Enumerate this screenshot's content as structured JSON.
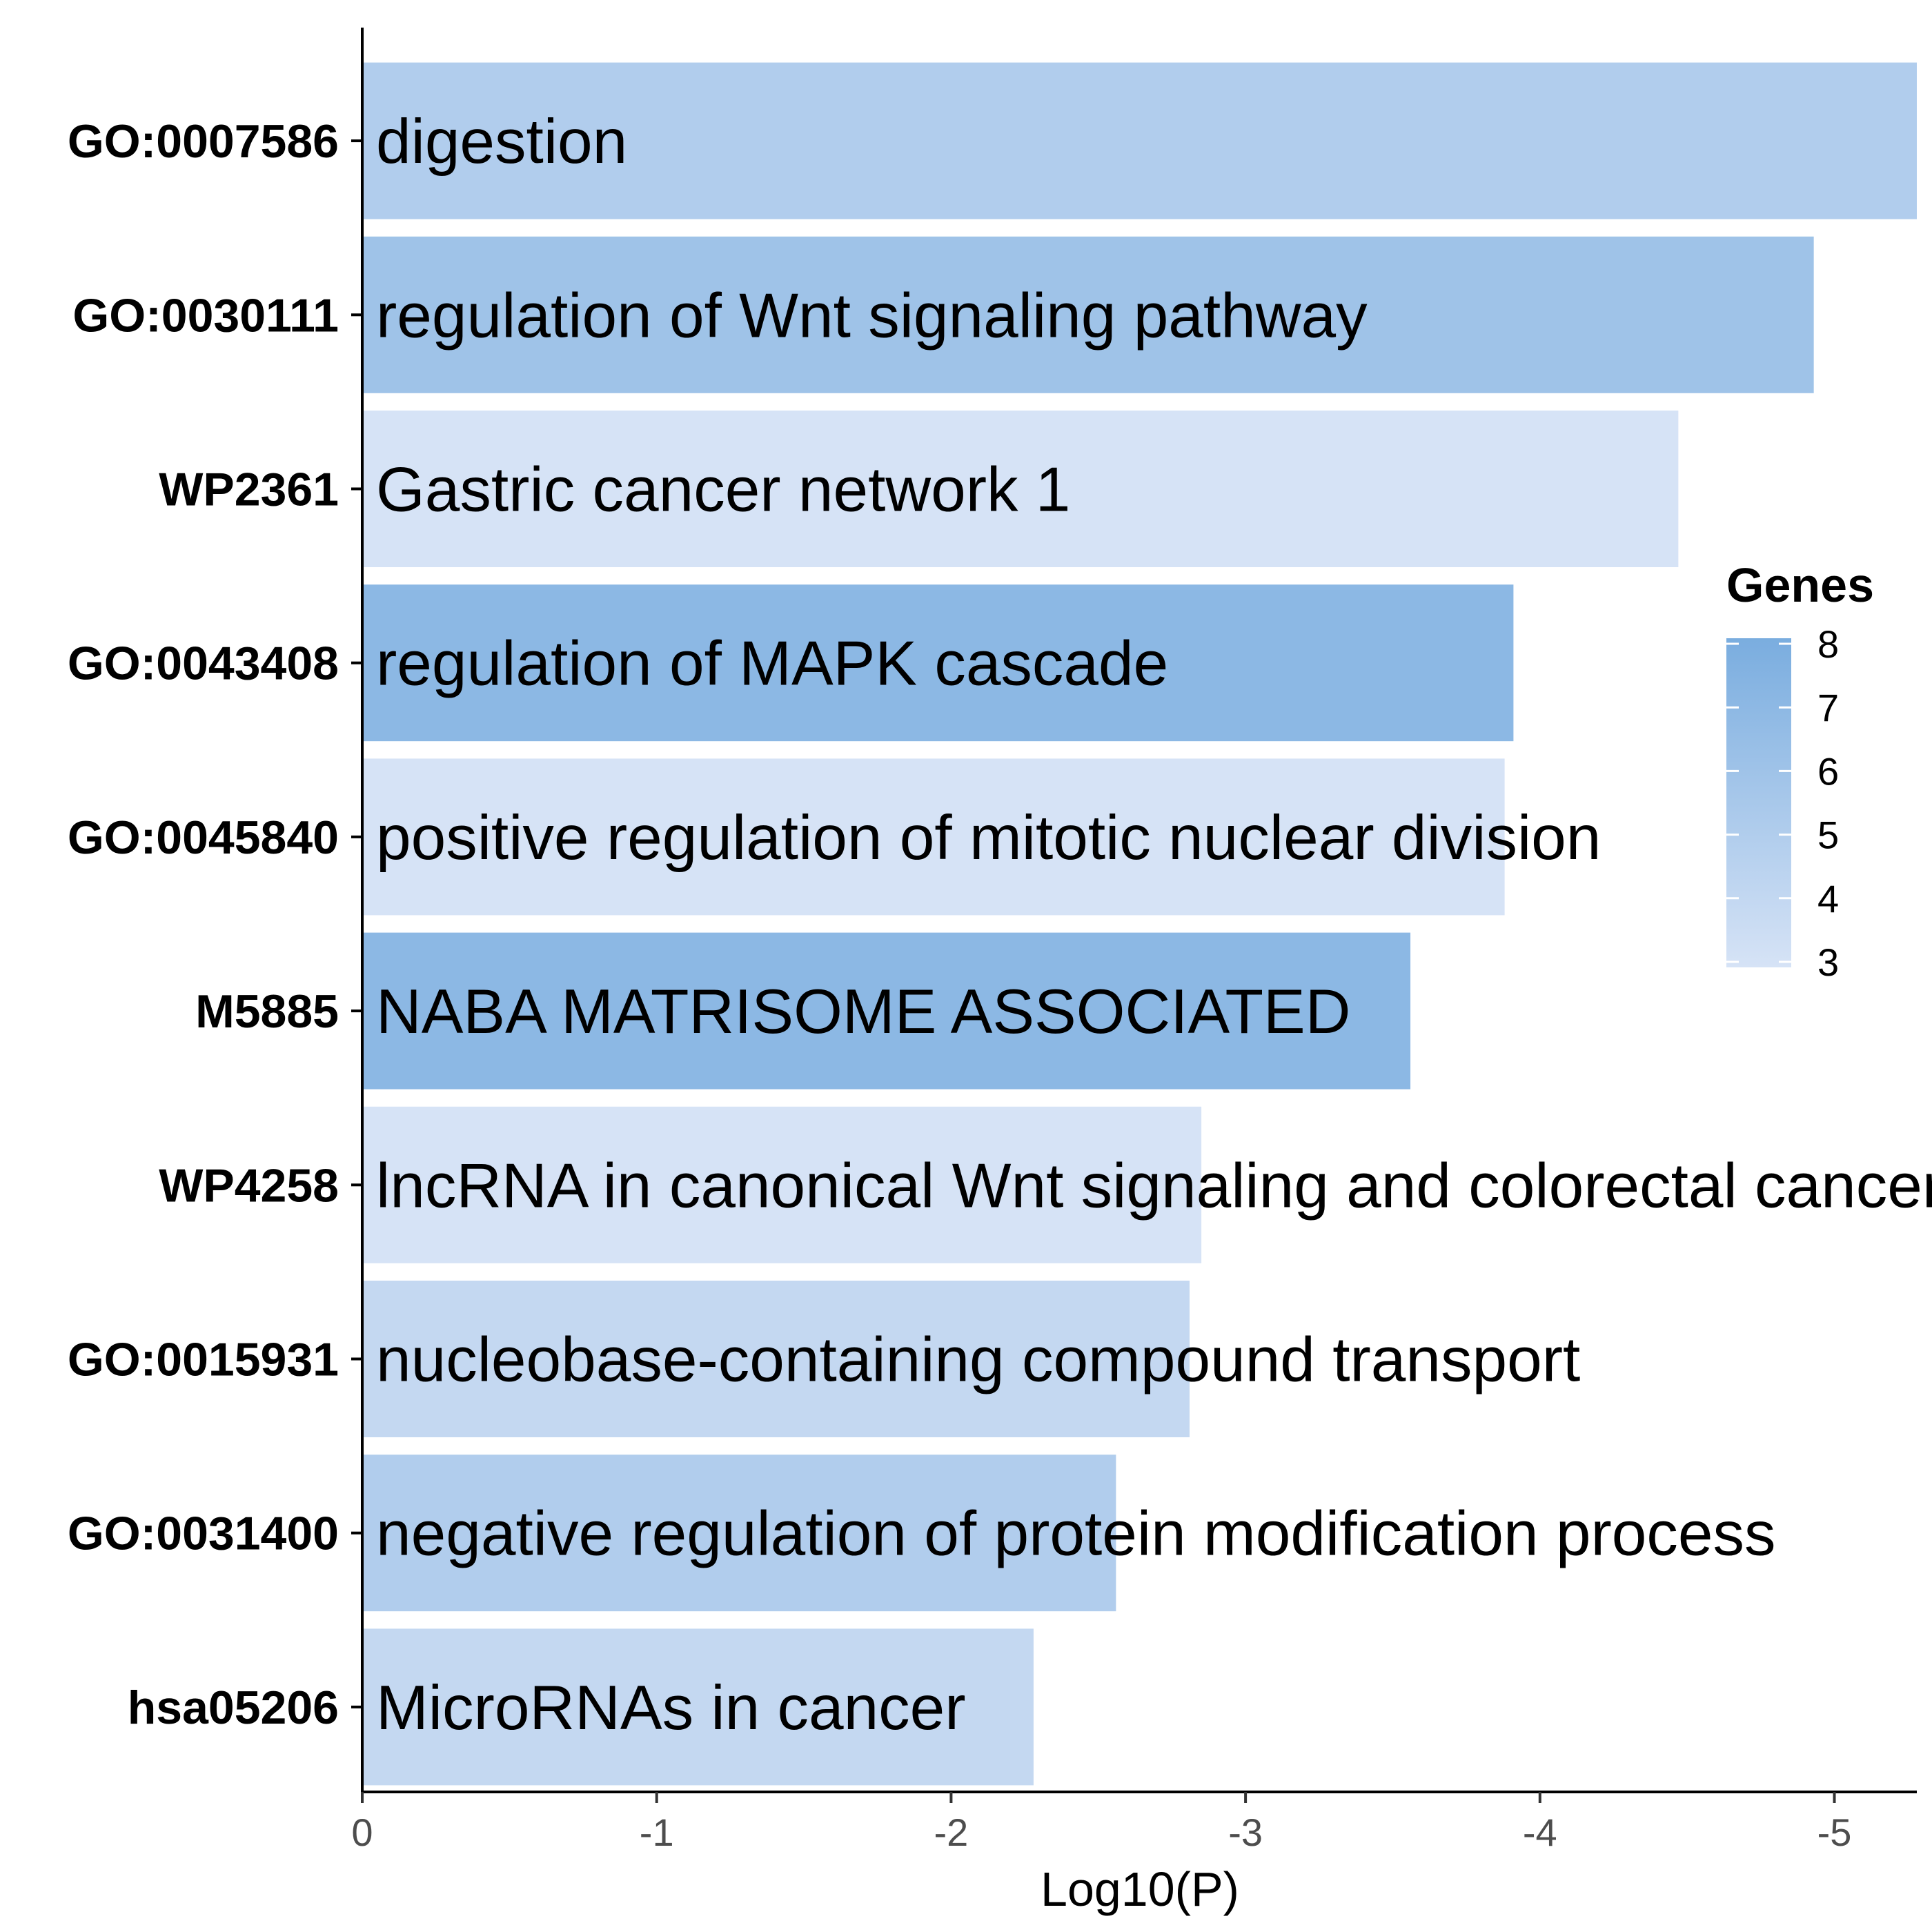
{
  "chart_data": {
    "type": "bar",
    "orientation": "horizontal",
    "xlabel": "Log10(P)",
    "ylabel": "",
    "xlim": [
      0,
      -5.28
    ],
    "x_ticks": [
      "0",
      "-1",
      "-2",
      "-3",
      "-4",
      "-5"
    ],
    "x_tick_values": [
      0,
      -1,
      -2,
      -3,
      -4,
      -5
    ],
    "grid": false,
    "categories": [
      "GO:0007586",
      "GO:0030111",
      "WP2361",
      "GO:0043408",
      "GO:0045840",
      "M5885",
      "WP4258",
      "GO:0015931",
      "GO:0031400",
      "hsa05206"
    ],
    "descriptions": [
      "digestion",
      "regulation of Wnt signaling pathway",
      "Gastric cancer network 1",
      "regulation of MAPK cascade",
      "positive regulation of mitotic nuclear division",
      "NABA MATRISOME ASSOCIATED",
      "lncRNA in canonical Wnt signaling and colorectal cancer",
      "nucleobase-containing compound transport",
      "negative regulation of protein modification process",
      "MicroRNAs in cancer"
    ],
    "values": [
      -5.28,
      -4.93,
      -4.47,
      -3.91,
      -3.88,
      -3.56,
      -2.85,
      -2.81,
      -2.56,
      -2.28
    ],
    "genes": [
      5,
      6,
      3,
      7,
      3,
      7,
      3,
      4,
      5,
      4
    ],
    "legend": {
      "title": "Genes",
      "position": "right",
      "min": 3,
      "max": 8,
      "ticks": [
        "8",
        "7",
        "6",
        "5",
        "4",
        "3"
      ],
      "tick_values": [
        8,
        7,
        6,
        5,
        4,
        3
      ],
      "color_low": "#d6e3f6",
      "color_high": "#7aaddf"
    }
  }
}
